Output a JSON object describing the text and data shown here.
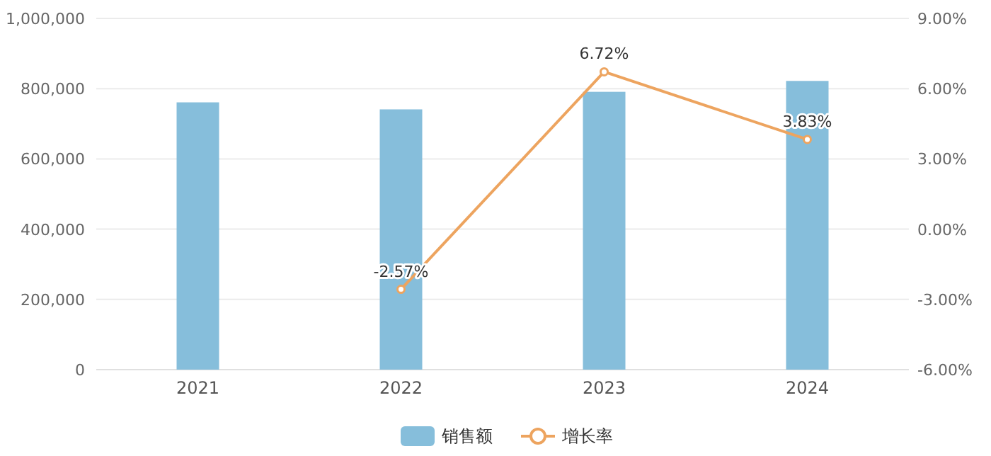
{
  "chart_data": {
    "type": "bar",
    "categories": [
      "2021",
      "2022",
      "2023",
      "2024"
    ],
    "series": [
      {
        "name": "销售额",
        "color": "#86bedb",
        "values": [
          761000,
          741000,
          791000,
          822000
        ]
      },
      {
        "name": "增长率",
        "type": "line",
        "axis": "y2",
        "color": "#eda45f",
        "marker": "circle",
        "values": [
          null,
          -2.57,
          6.72,
          3.83
        ],
        "value_labels": [
          null,
          "-2.57%",
          "6.72%",
          "3.83%"
        ]
      }
    ],
    "ylim": [
      0,
      1000000
    ],
    "yticks": [
      {
        "value": 0,
        "label": "0"
      },
      {
        "value": 200000,
        "label": "200,000"
      },
      {
        "value": 400000,
        "label": "400,000"
      },
      {
        "value": 600000,
        "label": "600,000"
      },
      {
        "value": 800000,
        "label": "800,000"
      },
      {
        "value": 1000000,
        "label": "1,000,000"
      }
    ],
    "y2lim": [
      -6,
      9
    ],
    "y2ticks": [
      {
        "value": -6,
        "label": "-6.00%"
      },
      {
        "value": -3,
        "label": "-3.00%"
      },
      {
        "value": 0,
        "label": "0.00%"
      },
      {
        "value": 3,
        "label": "3.00%"
      },
      {
        "value": 6,
        "label": "6.00%"
      },
      {
        "value": 9,
        "label": "9.00%"
      }
    ],
    "grid": "y",
    "legend": "bottom"
  }
}
